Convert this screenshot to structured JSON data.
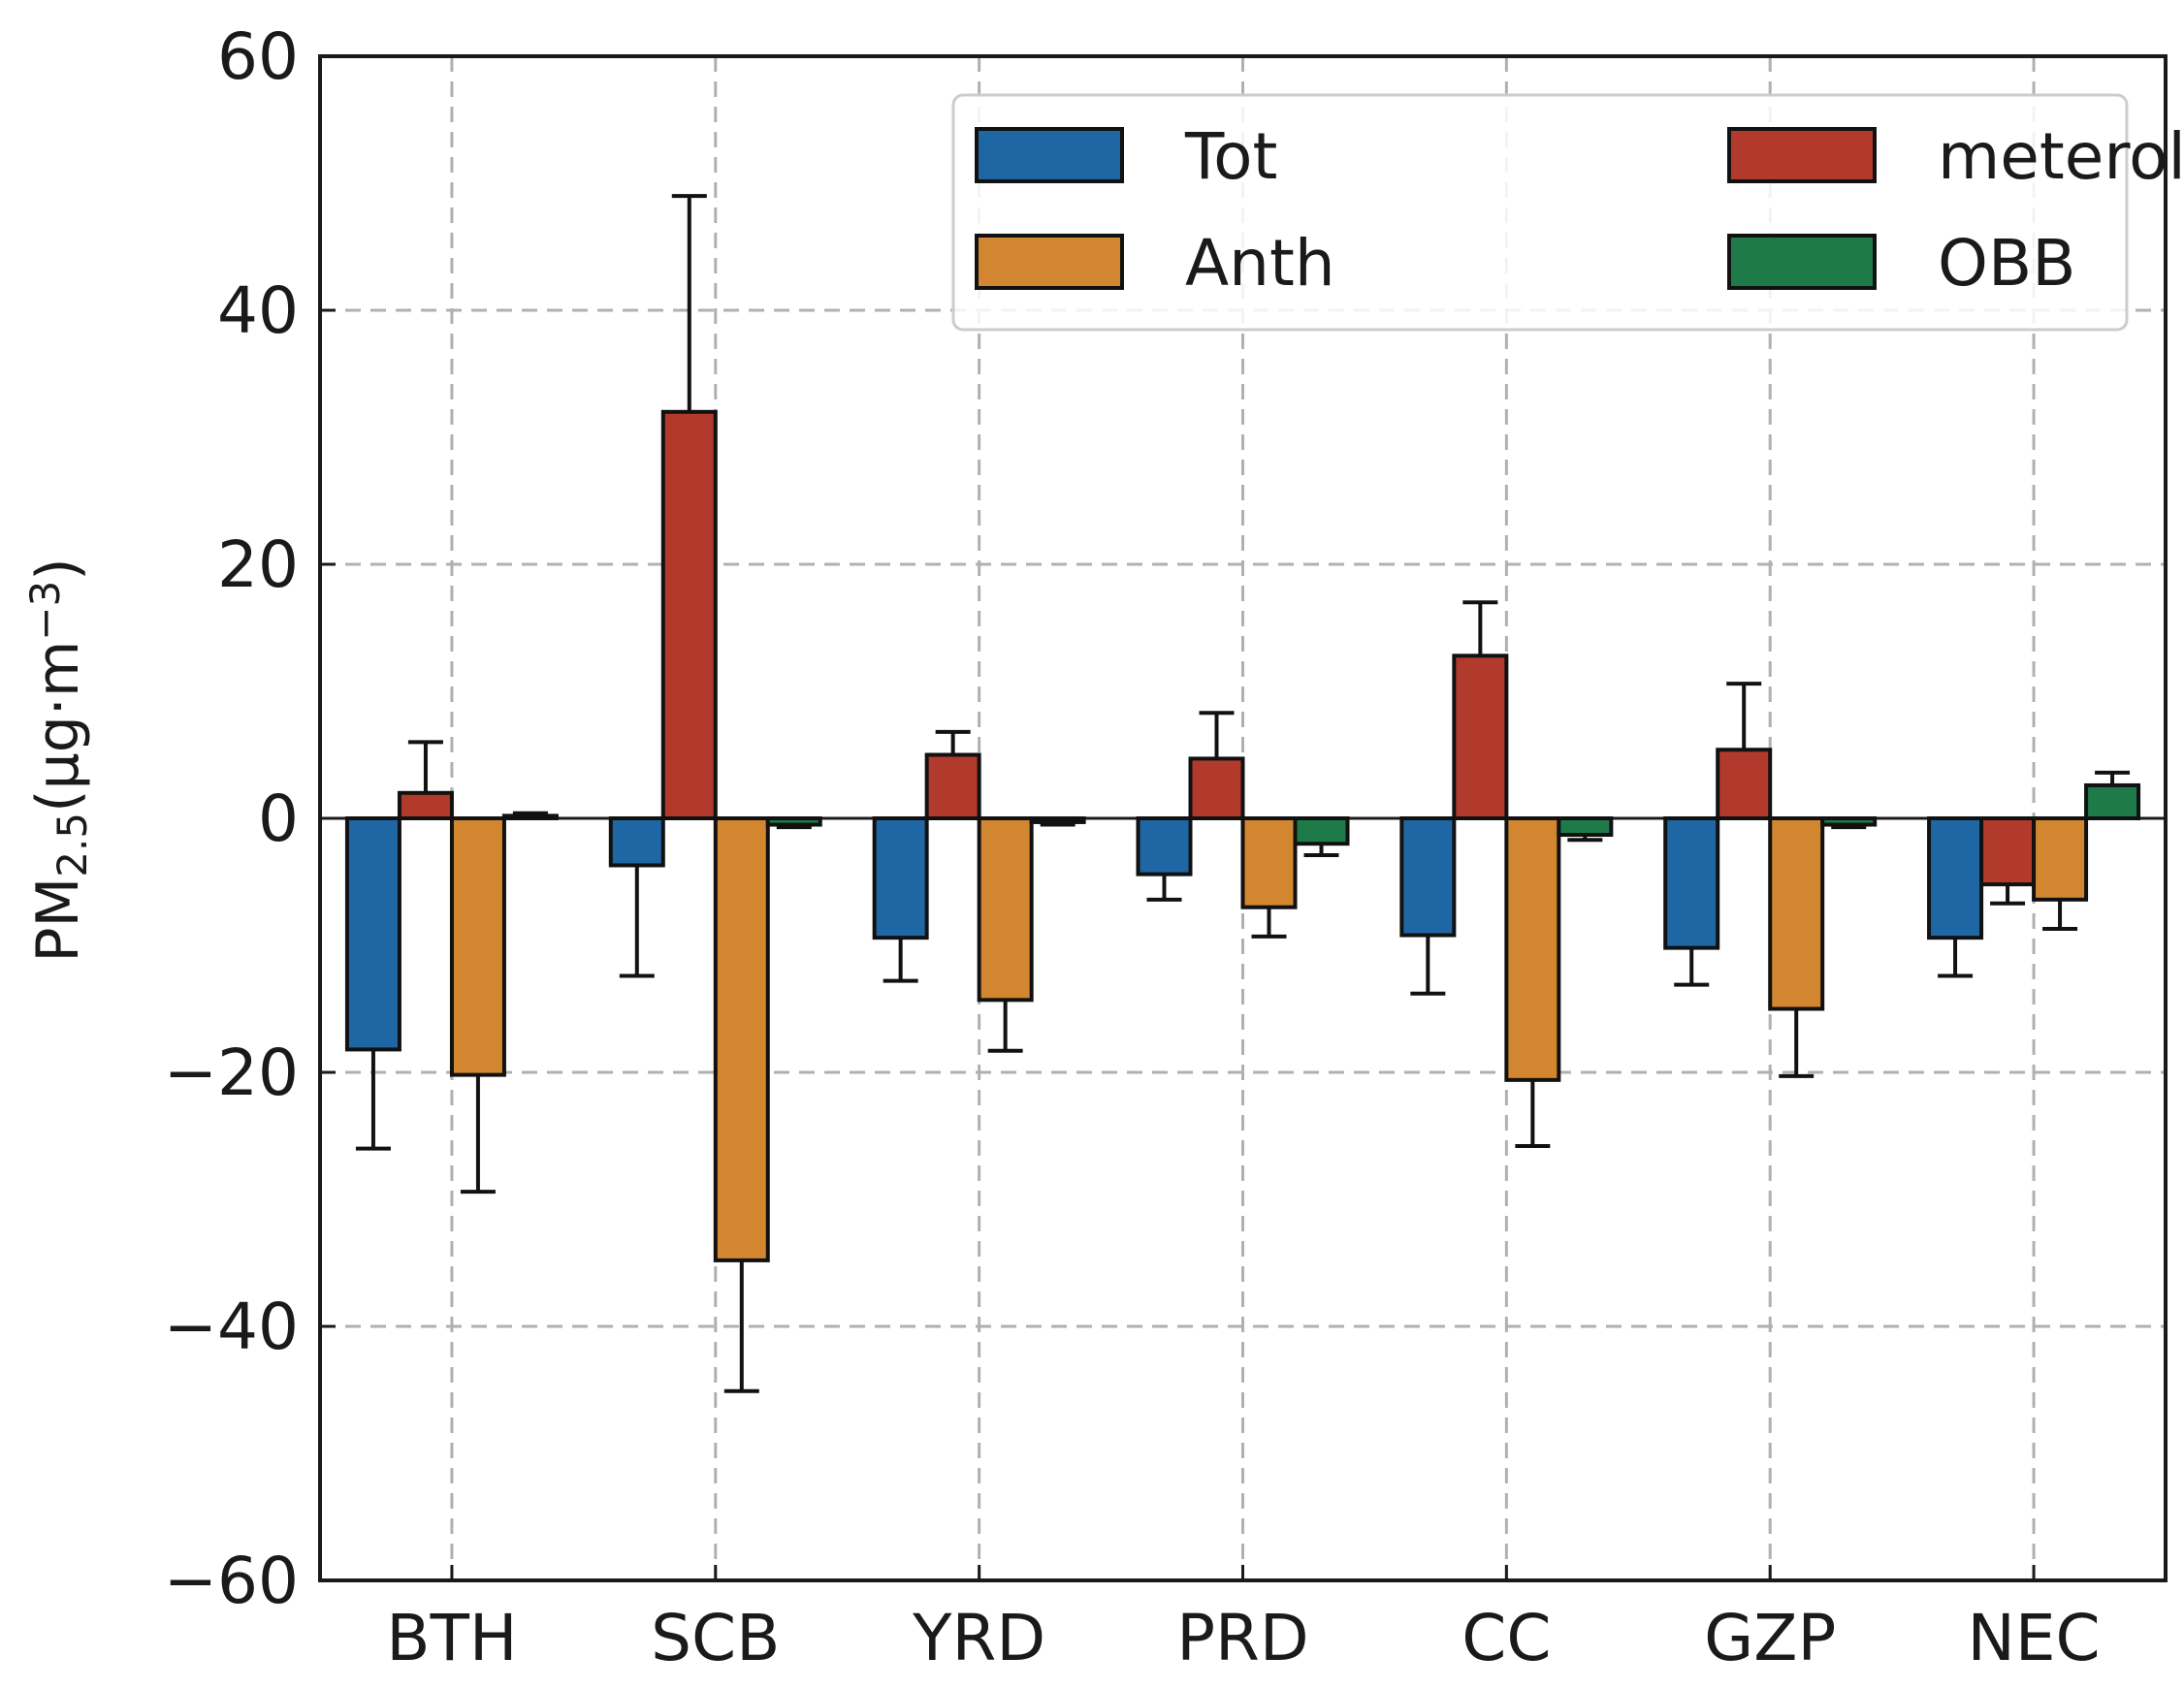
{
  "chart_data": {
    "type": "bar",
    "title": "",
    "xlabel": "",
    "ylabel": {
      "base": "PM",
      "subscript": "2.5",
      "unit_open": "(μg·m",
      "superscript": "−3",
      "unit_close": ")"
    },
    "ylim": [
      -60,
      60
    ],
    "yticks": [
      60,
      40,
      20,
      0,
      -20,
      -40,
      -60
    ],
    "ytick_labels": [
      "60",
      "40",
      "20",
      "0",
      "−20",
      "−40",
      "−60"
    ],
    "grid": true,
    "legend_position": "top-right",
    "categories": [
      "BTH",
      "SCB",
      "YRD",
      "PRD",
      "CC",
      "GZP",
      "NEC"
    ],
    "series": [
      {
        "name": "Tot",
        "color": "#1f67a4",
        "values": [
          -18.2,
          -3.7,
          -9.4,
          -4.4,
          -9.2,
          -10.2,
          -9.4
        ],
        "errors": [
          7.8,
          8.7,
          3.4,
          2.0,
          4.6,
          2.9,
          3.0
        ]
      },
      {
        "name": "meterology",
        "color": "#b23a2c",
        "values": [
          2.0,
          32.0,
          5.0,
          4.7,
          12.8,
          5.4,
          -5.2
        ],
        "errors": [
          4.0,
          17.0,
          1.8,
          3.6,
          4.2,
          5.2,
          1.5
        ]
      },
      {
        "name": "Anth",
        "color": "#d2862f",
        "values": [
          -20.2,
          -34.8,
          -14.3,
          -7.0,
          -20.6,
          -15.0,
          -6.4
        ],
        "errors": [
          9.2,
          10.3,
          4.0,
          2.3,
          5.2,
          5.3,
          2.3
        ]
      },
      {
        "name": "OBB",
        "color": "#1e7a49",
        "values": [
          0.2,
          -0.5,
          -0.3,
          -2.0,
          -1.3,
          -0.5,
          2.6
        ],
        "errors": [
          0.2,
          0.2,
          0.2,
          0.9,
          0.4,
          0.2,
          1.0
        ]
      }
    ]
  }
}
